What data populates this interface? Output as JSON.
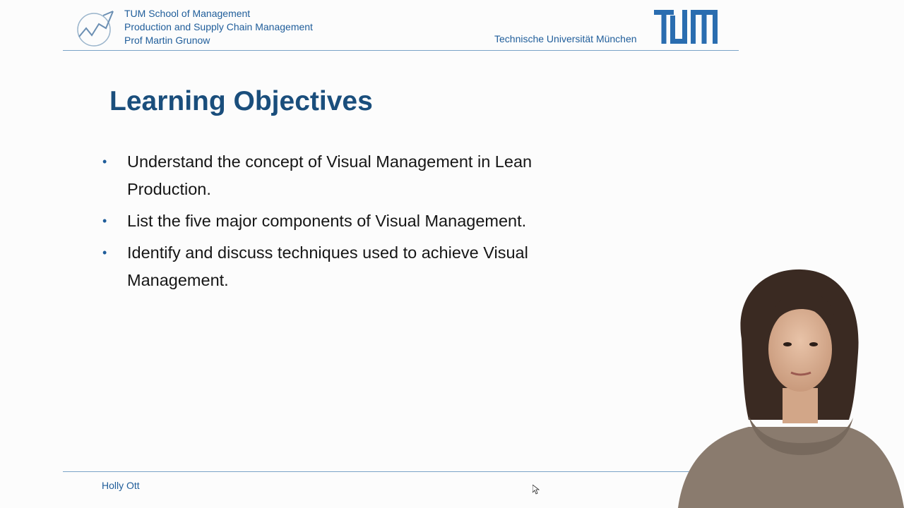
{
  "header": {
    "lines": [
      "TUM School of Management",
      "Production and Supply Chain Management",
      "Prof Martin Grunow"
    ],
    "university": "Technische Universität München",
    "logo_icon": "tum-logo",
    "school_icon": "tum-sm-logo"
  },
  "slide": {
    "title": "Learning Objectives",
    "bullets": [
      "Understand the concept of Visual Management in Lean Production.",
      "List the five major components of Visual Management.",
      "Identify and discuss techniques used to achieve Visual Management."
    ]
  },
  "footer": {
    "presenter_name": "Holly Ott"
  },
  "colors": {
    "accent": "#1f5d9a",
    "title": "#1a4e7c",
    "rule": "#7aa3c7",
    "background": "#fcfcfc"
  }
}
